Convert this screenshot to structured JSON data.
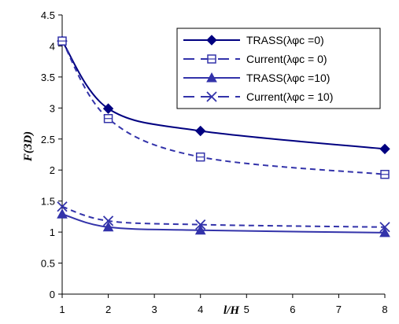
{
  "chart_data": {
    "type": "line",
    "title": "",
    "xlabel": "l/H",
    "ylabel": "F(3D)",
    "x_ticks": [
      "1",
      "2",
      "3",
      "4",
      "5",
      "6",
      "7",
      "8"
    ],
    "y_ticks": [
      "0",
      "0.5",
      "1",
      "1.5",
      "2",
      "2.5",
      "3",
      "3.5",
      "4",
      "4.5"
    ],
    "xlim": [
      1,
      8
    ],
    "ylim": [
      0,
      4.5
    ],
    "grid": false,
    "legend_position": "top-right",
    "series": [
      {
        "name": "TRASS(λφc =0)",
        "x": [
          1,
          2,
          4,
          8
        ],
        "y": [
          4.08,
          2.99,
          2.63,
          2.34
        ],
        "marker": "diamond",
        "line": "solid",
        "color": "#000080"
      },
      {
        "name": "Current(λφc = 0)",
        "x": [
          1,
          2,
          4,
          8
        ],
        "y": [
          4.08,
          2.83,
          2.21,
          1.93
        ],
        "marker": "square-open",
        "line": "dashed",
        "color": "#3333aa"
      },
      {
        "name": "TRASS(λφc =10)",
        "x": [
          1,
          2,
          4,
          8
        ],
        "y": [
          1.29,
          1.08,
          1.03,
          0.99
        ],
        "marker": "triangle",
        "line": "solid",
        "color": "#3333aa"
      },
      {
        "name": "Current(λφc = 10)",
        "x": [
          1,
          2,
          4,
          8
        ],
        "y": [
          1.41,
          1.18,
          1.12,
          1.08
        ],
        "marker": "x",
        "line": "dashed",
        "color": "#3333aa"
      }
    ]
  }
}
